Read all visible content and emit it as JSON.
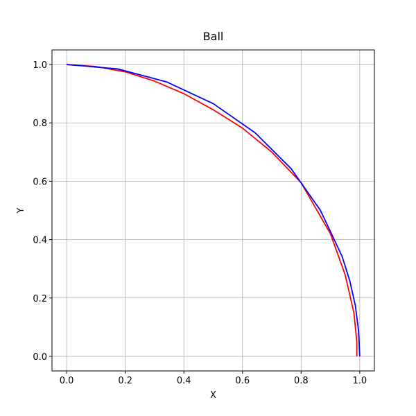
{
  "chart_data": {
    "type": "line",
    "title": "Ball",
    "x_label": "X",
    "y_label": "Y",
    "xlim": [
      -0.05,
      1.05
    ],
    "ylim": [
      -0.05,
      1.05
    ],
    "xticks": [
      {
        "value": 0,
        "label": "0.0"
      },
      0.2,
      0.4,
      0.6,
      0.8,
      {
        "value": 1,
        "label": "1.0"
      }
    ],
    "yticks": [
      {
        "value": 0,
        "label": "0.0"
      },
      0.2,
      0.4,
      0.6,
      0.8,
      {
        "value": 1,
        "label": "1.0"
      }
    ],
    "grid": true,
    "series": [
      {
        "color": "#ff0000",
        "x": [
          0,
          0.1,
          0.2,
          0.3,
          0.4,
          0.5,
          0.6,
          0.7,
          0.8,
          0.9,
          0.95,
          0.98,
          0.99,
          0.99
        ],
        "values": [
          1,
          0.993,
          0.975,
          0.943,
          0.9,
          0.845,
          0.782,
          0.7,
          0.595,
          0.42,
          0.28,
          0.15,
          0.05,
          0
        ]
      },
      {
        "color": "#0000ff",
        "x": [
          0,
          0.174,
          0.342,
          0.5,
          0.643,
          0.766,
          0.866,
          0.94,
          0.966,
          0.985,
          0.996,
          1
        ],
        "values": [
          1,
          0.985,
          0.94,
          0.866,
          0.766,
          0.643,
          0.5,
          0.342,
          0.259,
          0.174,
          0.087,
          0
        ]
      }
    ]
  }
}
